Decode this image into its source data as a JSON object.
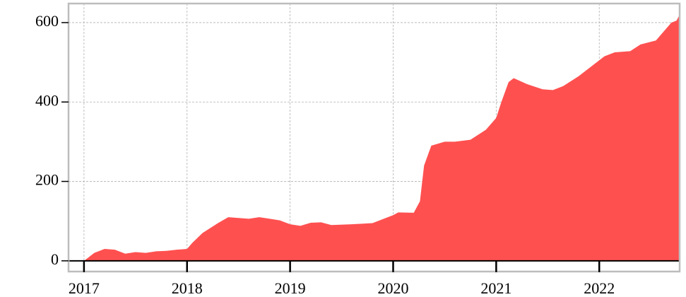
{
  "chart_data": {
    "type": "area",
    "x": [
      2017.0,
      2017.1,
      2017.2,
      2017.3,
      2017.4,
      2017.5,
      2017.6,
      2017.7,
      2017.8,
      2017.9,
      2018.0,
      2018.05,
      2018.15,
      2018.3,
      2018.4,
      2018.6,
      2018.7,
      2018.9,
      2019.0,
      2019.1,
      2019.2,
      2019.3,
      2019.4,
      2019.6,
      2019.8,
      2019.9,
      2020.0,
      2020.05,
      2020.2,
      2020.26,
      2020.3,
      2020.37,
      2020.5,
      2020.6,
      2020.75,
      2020.9,
      2021.0,
      2021.05,
      2021.12,
      2021.17,
      2021.3,
      2021.45,
      2021.55,
      2021.65,
      2021.8,
      2021.95,
      2022.05,
      2022.15,
      2022.3,
      2022.4,
      2022.55,
      2022.65,
      2022.7,
      2022.75,
      2022.78
    ],
    "series": [
      {
        "color": "#ff5050",
        "values": [
          0,
          20,
          30,
          28,
          18,
          22,
          20,
          24,
          25,
          28,
          30,
          45,
          70,
          95,
          110,
          106,
          110,
          102,
          92,
          88,
          96,
          97,
          90,
          92,
          95,
          105,
          115,
          122,
          121,
          150,
          240,
          290,
          300,
          300,
          305,
          330,
          360,
          400,
          450,
          460,
          445,
          432,
          430,
          440,
          465,
          495,
          515,
          525,
          528,
          545,
          555,
          585,
          600,
          605,
          620
        ]
      }
    ],
    "xlim": [
      2016.85,
      2022.78
    ],
    "xticks": [
      2017,
      2018,
      2019,
      2020,
      2021,
      2022
    ],
    "ylim": [
      -27,
      648
    ],
    "yticks": [
      0,
      200,
      400,
      600
    ],
    "grid": true
  }
}
